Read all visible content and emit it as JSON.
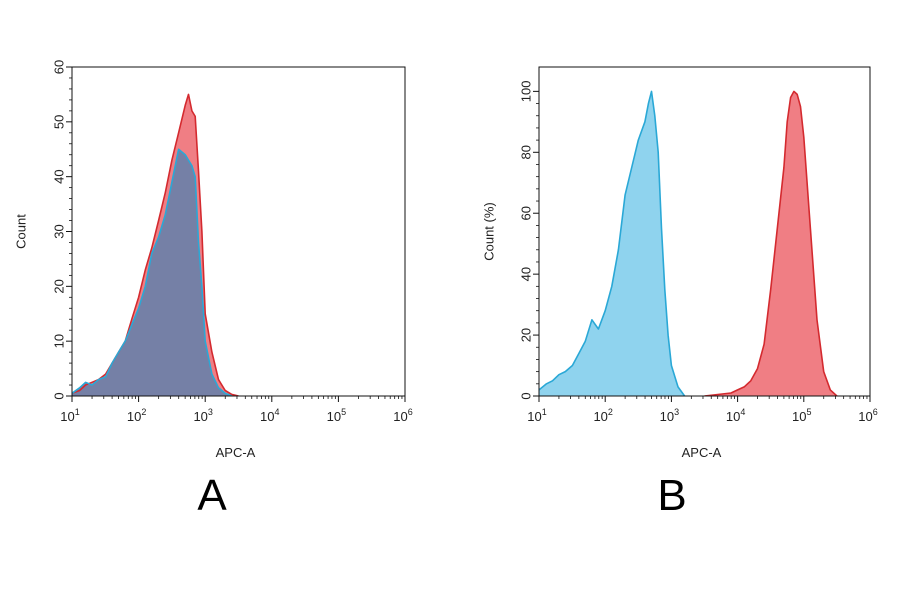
{
  "colors": {
    "red_fill": "#f07e84",
    "red_line": "#d42a2f",
    "blue_fill": "#8fd3ee",
    "blue_line": "#2aa8d6",
    "overlap_fill": "#7580a6"
  },
  "chart_data": [
    {
      "type": "area",
      "panel_label": "A",
      "xlabel": "APC-A",
      "ylabel": "Count",
      "xscale": "log",
      "xlim": [
        10,
        1000000
      ],
      "ylim": [
        0,
        60
      ],
      "x_ticks": [
        {
          "base": "10",
          "exp": "1"
        },
        {
          "base": "10",
          "exp": "2"
        },
        {
          "base": "10",
          "exp": "3"
        },
        {
          "base": "10",
          "exp": "4"
        },
        {
          "base": "10",
          "exp": "5"
        },
        {
          "base": "10",
          "exp": "6"
        }
      ],
      "y_ticks": [
        "0",
        "10",
        "20",
        "30",
        "40",
        "50",
        "60"
      ],
      "series": [
        {
          "color": "red",
          "x": [
            10,
            13,
            16,
            20,
            25,
            32,
            40,
            50,
            63,
            79,
            100,
            126,
            158,
            200,
            251,
            316,
            398,
            501,
            562,
            631,
            708,
            794,
            891,
            1000,
            1259,
            1585,
            1995,
            2512,
            3162
          ],
          "y": [
            0.5,
            1,
            2,
            2.5,
            3,
            4,
            6,
            8,
            10,
            14,
            18,
            23,
            27,
            32,
            37,
            43,
            48,
            53,
            55,
            52,
            51,
            41,
            30,
            15,
            8,
            3,
            1,
            0.3,
            0
          ]
        },
        {
          "color": "blue",
          "x": [
            10,
            13,
            16,
            20,
            25,
            32,
            40,
            50,
            63,
            79,
            100,
            126,
            158,
            200,
            251,
            316,
            398,
            501,
            562,
            631,
            708,
            794,
            891,
            1000,
            1259,
            1585,
            1995,
            2512
          ],
          "y": [
            0.5,
            1.5,
            2.5,
            2,
            3,
            3.5,
            6,
            8,
            10,
            13,
            16,
            20,
            26,
            29,
            33,
            39,
            45,
            44,
            43,
            42,
            40,
            28,
            20,
            10,
            4,
            1.5,
            0.5,
            0
          ]
        }
      ]
    },
    {
      "type": "area",
      "panel_label": "B",
      "xlabel": "APC-A",
      "ylabel": "Count (%)",
      "xscale": "log",
      "xlim": [
        10,
        1000000
      ],
      "ylim": [
        0,
        108
      ],
      "x_ticks": [
        {
          "base": "10",
          "exp": "1"
        },
        {
          "base": "10",
          "exp": "2"
        },
        {
          "base": "10",
          "exp": "3"
        },
        {
          "base": "10",
          "exp": "4"
        },
        {
          "base": "10",
          "exp": "5"
        },
        {
          "base": "10",
          "exp": "6"
        }
      ],
      "y_ticks": [
        "0",
        "20",
        "40",
        "60",
        "80",
        "100"
      ],
      "series": [
        {
          "color": "blue",
          "x": [
            10,
            13,
            16,
            20,
            25,
            32,
            40,
            50,
            63,
            79,
            100,
            126,
            158,
            200,
            251,
            316,
            398,
            450,
            501,
            562,
            631,
            708,
            794,
            891,
            1000,
            1259,
            1585
          ],
          "y": [
            2,
            4,
            5,
            7,
            8,
            10,
            14,
            18,
            25,
            22,
            28,
            36,
            48,
            66,
            75,
            84,
            90,
            96,
            100,
            92,
            80,
            55,
            35,
            20,
            10,
            3,
            0
          ]
        },
        {
          "color": "red",
          "x": [
            3162,
            5012,
            7943,
            10000,
            12589,
            15849,
            19953,
            25119,
            31623,
            39811,
            50119,
            56234,
            63096,
            70795,
            79433,
            89125,
            100000,
            125893,
            158489,
            199526,
            251189,
            316228
          ],
          "y": [
            0,
            0.5,
            1,
            2,
            3,
            5,
            9,
            17,
            35,
            55,
            75,
            90,
            98,
            100,
            99,
            95,
            85,
            55,
            25,
            8,
            2,
            0
          ]
        }
      ]
    }
  ]
}
